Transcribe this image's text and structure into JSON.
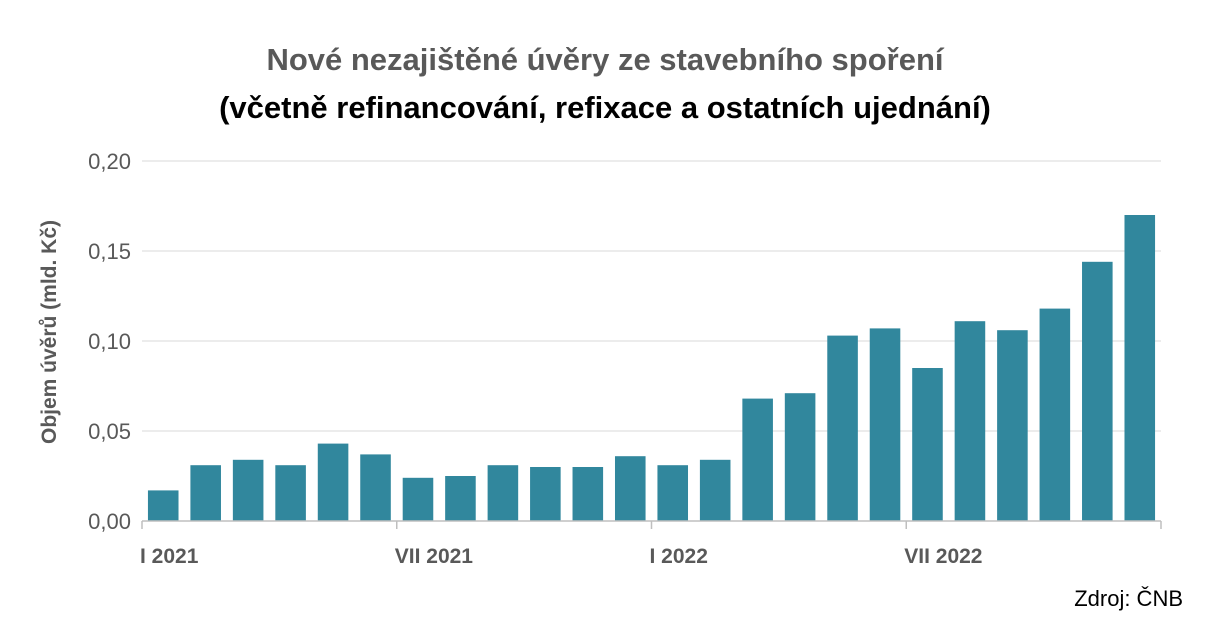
{
  "chart_data": {
    "type": "bar",
    "title": "Nové nezajištěné úvěry ze stavebního spoření",
    "subtitle": "(včetně refinancování, refixace a ostatních ujednání)",
    "ylabel": "Objem úvěrů (mld. Kč)",
    "xlabel": "",
    "ylim": [
      0,
      0.2
    ],
    "yticks": [
      "0,00",
      "0,05",
      "0,10",
      "0,15",
      "0,20"
    ],
    "ytick_values": [
      0,
      0.05,
      0.1,
      0.15,
      0.2
    ],
    "x_tick_labels": [
      {
        "index": 0,
        "label": "I 2021"
      },
      {
        "index": 6,
        "label": "VII 2021"
      },
      {
        "index": 12,
        "label": "I 2022"
      },
      {
        "index": 18,
        "label": "VII 2022"
      }
    ],
    "values": [
      0.017,
      0.031,
      0.034,
      0.031,
      0.043,
      0.037,
      0.024,
      0.025,
      0.031,
      0.03,
      0.03,
      0.036,
      0.031,
      0.034,
      0.068,
      0.071,
      0.103,
      0.107,
      0.085,
      0.111,
      0.106,
      0.118,
      0.144,
      0.17
    ],
    "bar_color": "#31879D",
    "grid": true,
    "legend": "none"
  },
  "source": "Zdroj: ČNB"
}
